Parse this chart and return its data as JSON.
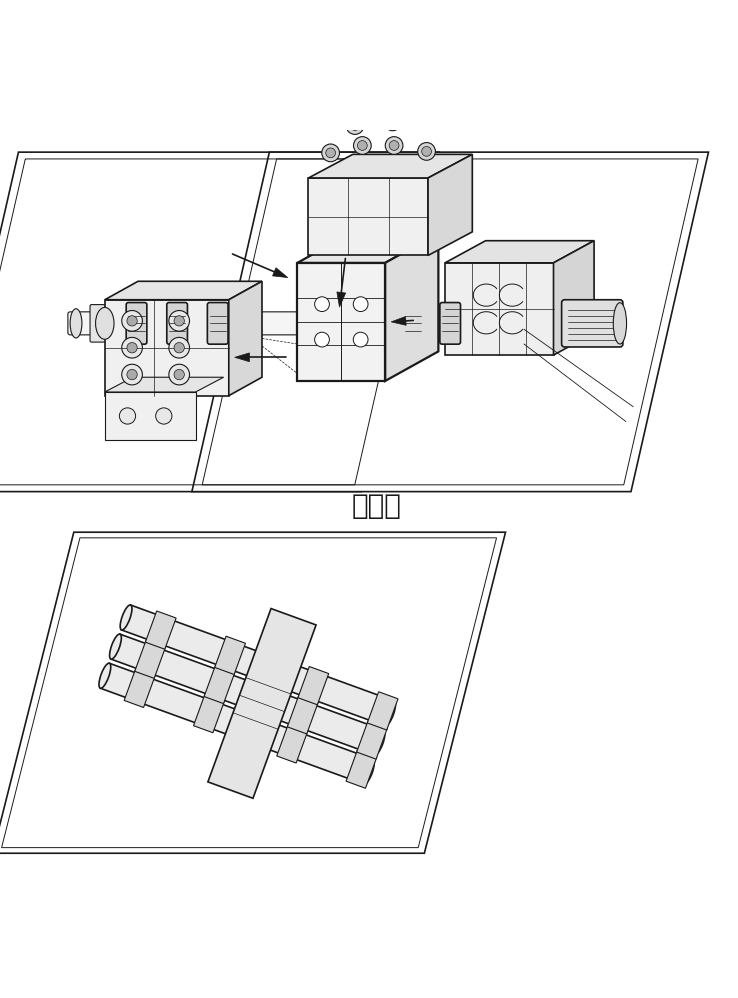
{
  "background_color": "#ffffff",
  "line_color": "#1a1a1a",
  "label_text": "前置级",
  "label_fontsize": 20,
  "fig_width": 7.38,
  "fig_height": 9.98,
  "dpi": 100
}
